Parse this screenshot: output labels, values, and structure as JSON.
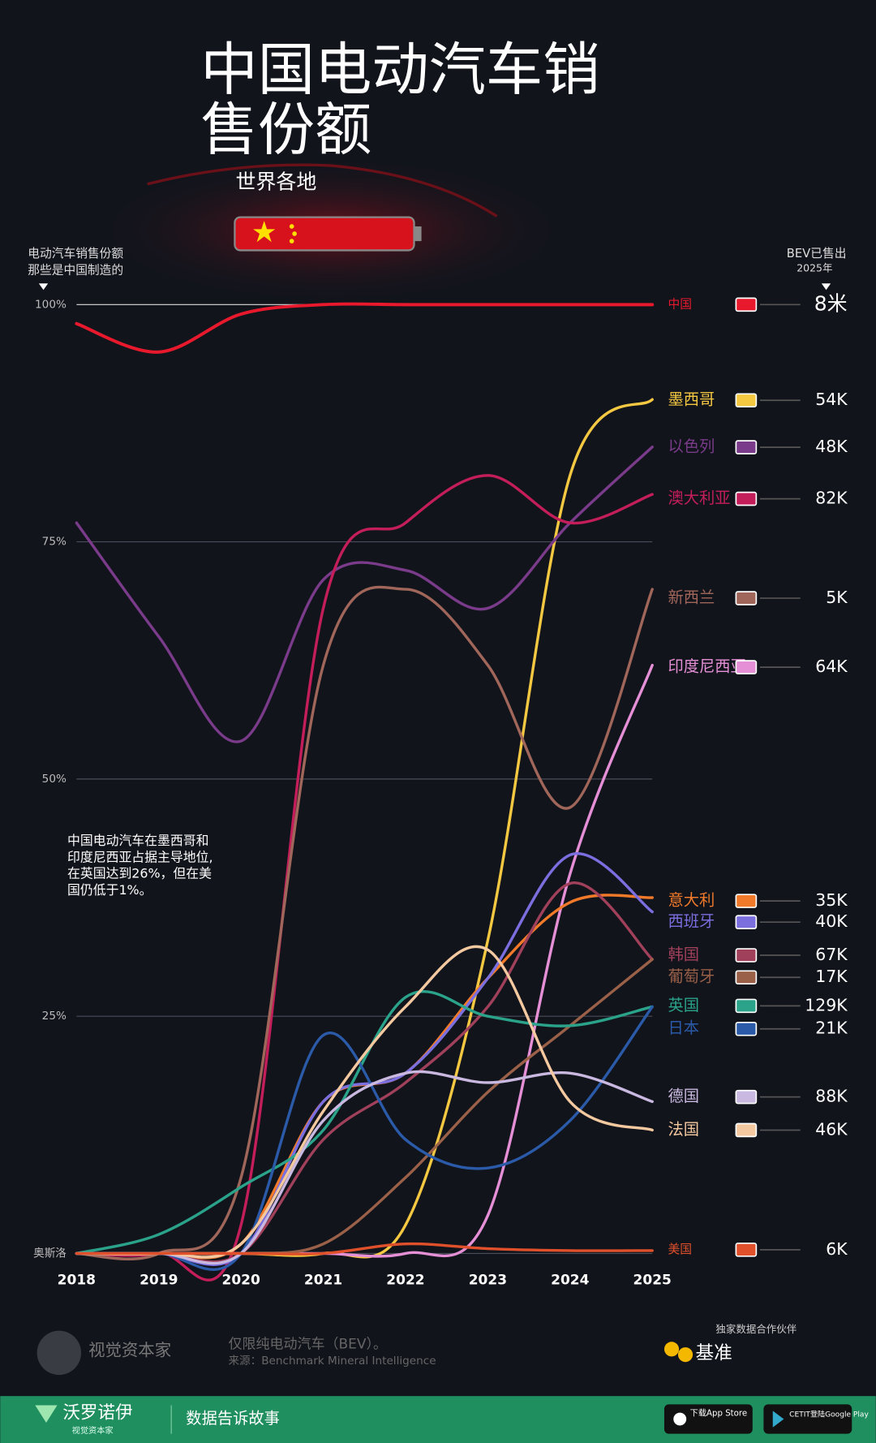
{
  "header": {
    "title": [
      "中国电动汽车销",
      "售份额"
    ],
    "subtitle": "世界各地"
  },
  "chart_data": {
    "type": "line",
    "y_axis_label": [
      "电动汽车销售份额",
      "那些是中国制造的"
    ],
    "right_label": [
      "BEV已售出",
      "2025年"
    ],
    "x": [
      2018,
      2019,
      2020,
      2021,
      2022,
      2023,
      2024,
      2025
    ],
    "xlim": [
      2018,
      2025
    ],
    "xticks": [
      2018,
      2019,
      2020,
      2021,
      2022,
      2023,
      2024,
      2025
    ],
    "ylim": [
      0,
      100
    ],
    "yticks": [
      {
        "value": 0,
        "label": "奥斯洛"
      },
      {
        "value": 25,
        "label": "25%"
      },
      {
        "value": 50,
        "label": "50%"
      },
      {
        "value": 75,
        "label": "75%"
      },
      {
        "value": 100,
        "label": "100%"
      }
    ],
    "grid": true,
    "annotation": [
      "中国电动汽车在墨西哥和",
      "印度尼西亚占据主导地位,",
      "在英国达到26%，但在美",
      "国仍低于1%。"
    ],
    "series": [
      {
        "name": "中国",
        "color": "#e8192c",
        "values": [
          98,
          95,
          99,
          100,
          100,
          100,
          100,
          100
        ],
        "sold": "8米"
      },
      {
        "name": "墨西哥",
        "color": "#f5c842",
        "values": [
          0,
          0,
          0,
          0,
          3,
          33,
          82,
          90
        ],
        "sold": "54K"
      },
      {
        "name": "以色列",
        "color": "#7a3b8a",
        "values": [
          77,
          65,
          54,
          71,
          72,
          68,
          77,
          85
        ],
        "sold": "48K"
      },
      {
        "name": "澳大利亚",
        "color": "#c41e5a",
        "values": [
          0,
          0,
          3,
          68,
          77,
          82,
          77,
          80
        ],
        "sold": "82K"
      },
      {
        "name": "新西兰",
        "color": "#a0665a",
        "values": [
          0,
          0,
          8,
          62,
          70,
          62,
          47,
          70
        ],
        "sold": "5K"
      },
      {
        "name": "印度尼西亚",
        "color": "#e58fd6",
        "values": [
          0,
          0,
          0,
          0,
          0,
          4,
          40,
          62
        ],
        "sold": "64K"
      },
      {
        "name": "意大利",
        "color": "#f07a2a",
        "values": [
          0,
          0,
          1,
          16,
          19,
          29,
          37,
          37.5
        ],
        "sold": "35K"
      },
      {
        "name": "西班牙",
        "color": "#7b6fe0",
        "values": [
          0,
          0,
          0,
          16,
          19,
          29,
          42,
          36
        ],
        "sold": "40K"
      },
      {
        "name": "韩国",
        "color": "#a0405a",
        "values": [
          0,
          0,
          0,
          12,
          18,
          26,
          39,
          31
        ],
        "sold": "67K"
      },
      {
        "name": "葡萄牙",
        "color": "#9a6048",
        "values": [
          0,
          0,
          0,
          1,
          8,
          17,
          24,
          31
        ],
        "sold": "17K"
      },
      {
        "name": "英国",
        "color": "#2aa38a",
        "values": [
          0,
          2,
          7,
          13,
          27,
          25,
          24,
          26
        ],
        "sold": "129K"
      },
      {
        "name": "日本",
        "color": "#2a5aa8",
        "values": [
          0,
          0,
          0,
          23,
          12,
          9,
          14,
          26
        ],
        "sold": "21K"
      },
      {
        "name": "德国",
        "color": "#c9b8e0",
        "values": [
          0,
          0,
          0,
          14,
          19,
          18,
          19,
          16
        ],
        "sold": "88K"
      },
      {
        "name": "法国",
        "color": "#f5c9a0",
        "values": [
          0,
          0,
          1,
          15,
          26,
          32,
          16,
          13
        ],
        "sold": "46K"
      },
      {
        "name": "美国",
        "color": "#e0502a",
        "values": [
          0,
          0,
          0,
          0,
          1,
          0.5,
          0.3,
          0.3
        ],
        "sold": "6K"
      }
    ]
  },
  "footer": {
    "brand": "视觉资本家",
    "note": "仅限纯电动汽车（BEV）。",
    "source": "来源：Benchmark Mineral Intelligence",
    "partner_label": "独家数据合作伙伴",
    "partner": "基准"
  },
  "bottom_bar": {
    "brand": "沃罗诺伊",
    "brand_sub": "视觉资本家",
    "tagline": "数据告诉故事",
    "app_store": "下载App Store",
    "google_play": "CETIT登陆Google Play"
  }
}
